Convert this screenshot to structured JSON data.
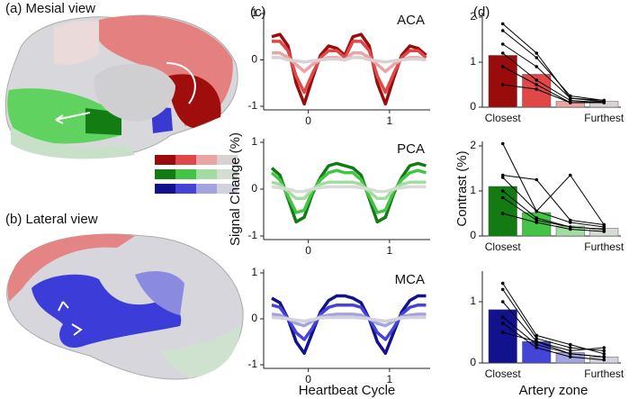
{
  "labels": {
    "a": "(a) Mesial view",
    "b": "(b) Lateral view",
    "c": "(c)",
    "d": "(d)"
  },
  "chart_data": [
    {
      "type": "line",
      "title": "ACA",
      "xlim": [
        -0.55,
        1.5
      ],
      "ylim": [
        -1,
        1
      ],
      "xticks": [
        0,
        1
      ],
      "yticks": [
        -1,
        0,
        1
      ],
      "x": [
        -0.45,
        -0.35,
        -0.25,
        -0.15,
        -0.05,
        0.05,
        0.15,
        0.25,
        0.35,
        0.45,
        0.55,
        0.65,
        0.75,
        0.85,
        0.95,
        1.05,
        1.15,
        1.25,
        1.35,
        1.45
      ],
      "series": [
        {
          "color": "#9a0c0c",
          "values": [
            0.5,
            0.55,
            0.3,
            -0.5,
            -0.95,
            -0.4,
            0.1,
            0.3,
            0.25,
            0.1,
            0.5,
            0.55,
            0.3,
            -0.5,
            -0.95,
            -0.4,
            0.1,
            0.3,
            0.25,
            0.1
          ]
        },
        {
          "color": "#e04848",
          "values": [
            0.4,
            0.4,
            0.2,
            -0.35,
            -0.7,
            -0.3,
            0.05,
            0.2,
            0.2,
            0.05,
            0.4,
            0.4,
            0.2,
            -0.35,
            -0.7,
            -0.3,
            0.05,
            0.2,
            0.2,
            0.05
          ]
        },
        {
          "color": "#eba3a3",
          "values": [
            0.15,
            0.15,
            0.05,
            -0.1,
            -0.25,
            -0.1,
            0.0,
            0.05,
            0.05,
            0.0,
            0.15,
            0.15,
            0.05,
            -0.1,
            -0.25,
            -0.1,
            0.0,
            0.05,
            0.05,
            0.0
          ]
        },
        {
          "color": "#d9d2d2",
          "values": [
            0.05,
            0.05,
            0.0,
            -0.02,
            -0.05,
            -0.02,
            0.0,
            0.02,
            0.02,
            0.0,
            0.05,
            0.05,
            0.0,
            -0.02,
            -0.05,
            -0.02,
            0.0,
            0.02,
            0.02,
            0.0
          ]
        }
      ]
    },
    {
      "type": "line",
      "title": "PCA",
      "ylabel": "Signal Change (%)",
      "xlim": [
        -0.55,
        1.5
      ],
      "ylim": [
        -1,
        1
      ],
      "xticks": [
        0,
        1
      ],
      "yticks": [
        -1,
        0,
        1
      ],
      "x": [
        -0.45,
        -0.35,
        -0.25,
        -0.15,
        -0.05,
        0.05,
        0.15,
        0.25,
        0.35,
        0.45,
        0.55,
        0.65,
        0.75,
        0.85,
        0.95,
        1.05,
        1.15,
        1.25,
        1.35,
        1.45
      ],
      "series": [
        {
          "color": "#127c12",
          "values": [
            0.45,
            0.3,
            -0.2,
            -0.7,
            -0.6,
            -0.1,
            0.25,
            0.5,
            0.55,
            0.5,
            0.45,
            0.3,
            -0.2,
            -0.7,
            -0.6,
            -0.1,
            0.25,
            0.5,
            0.55,
            0.5
          ]
        },
        {
          "color": "#44c444",
          "values": [
            0.35,
            0.2,
            -0.15,
            -0.5,
            -0.45,
            -0.05,
            0.2,
            0.35,
            0.4,
            0.35,
            0.35,
            0.2,
            -0.15,
            -0.5,
            -0.45,
            -0.05,
            0.2,
            0.35,
            0.4,
            0.35
          ]
        },
        {
          "color": "#a3dca3",
          "values": [
            0.15,
            0.1,
            -0.05,
            -0.2,
            -0.2,
            0.0,
            0.1,
            0.15,
            0.15,
            0.15,
            0.15,
            0.1,
            -0.05,
            -0.2,
            -0.2,
            0.0,
            0.1,
            0.15,
            0.15,
            0.15
          ]
        },
        {
          "color": "#d4dcd4",
          "values": [
            0.05,
            0.03,
            0.0,
            -0.05,
            -0.05,
            0.0,
            0.03,
            0.05,
            0.05,
            0.05,
            0.05,
            0.03,
            0.0,
            -0.05,
            -0.05,
            0.0,
            0.03,
            0.05,
            0.05,
            0.05
          ]
        }
      ]
    },
    {
      "type": "line",
      "title": "MCA",
      "xlabel": "Heartbeat Cycle",
      "xlim": [
        -0.55,
        1.5
      ],
      "ylim": [
        -1,
        1
      ],
      "xticks": [
        0,
        1
      ],
      "yticks": [
        -1,
        0,
        1
      ],
      "x": [
        -0.45,
        -0.35,
        -0.25,
        -0.15,
        -0.05,
        0.05,
        0.15,
        0.25,
        0.35,
        0.45,
        0.55,
        0.65,
        0.75,
        0.85,
        0.95,
        1.05,
        1.15,
        1.25,
        1.35,
        1.45
      ],
      "series": [
        {
          "color": "#12128e",
          "values": [
            0.45,
            0.35,
            0.0,
            -0.5,
            -0.75,
            -0.3,
            0.15,
            0.4,
            0.5,
            0.5,
            0.45,
            0.35,
            0.0,
            -0.5,
            -0.75,
            -0.3,
            0.15,
            0.4,
            0.5,
            0.5
          ]
        },
        {
          "color": "#4444d8",
          "values": [
            0.3,
            0.25,
            0.0,
            -0.3,
            -0.45,
            -0.2,
            0.1,
            0.25,
            0.3,
            0.3,
            0.3,
            0.25,
            0.0,
            -0.3,
            -0.45,
            -0.2,
            0.1,
            0.25,
            0.3,
            0.3
          ]
        },
        {
          "color": "#a3a3e2",
          "values": [
            0.1,
            0.08,
            0.0,
            -0.1,
            -0.15,
            -0.05,
            0.05,
            0.08,
            0.1,
            0.1,
            0.1,
            0.08,
            0.0,
            -0.1,
            -0.15,
            -0.05,
            0.05,
            0.08,
            0.1,
            0.1
          ]
        },
        {
          "color": "#d2d2dc",
          "values": [
            0.03,
            0.02,
            0.0,
            -0.03,
            -0.05,
            -0.02,
            0.02,
            0.03,
            0.03,
            0.03,
            0.03,
            0.02,
            0.0,
            -0.03,
            -0.05,
            -0.02,
            0.02,
            0.03,
            0.03,
            0.03
          ]
        }
      ]
    },
    {
      "type": "bar",
      "categories": [
        "Closest",
        null,
        null,
        "Furthest"
      ],
      "ylim": [
        0,
        2.1
      ],
      "yticks": [
        0,
        1,
        2
      ],
      "values": [
        1.15,
        0.73,
        0.13,
        0.13
      ],
      "colors": [
        "#9a0c0c",
        "#e04848",
        "#eba3a3",
        "#d9d2d2"
      ],
      "subjects": [
        [
          1.85,
          1.2,
          0.2,
          0.12
        ],
        [
          1.7,
          1.1,
          0.25,
          0.15
        ],
        [
          1.4,
          0.9,
          0.2,
          0.15
        ],
        [
          1.2,
          0.6,
          0.15,
          0.1
        ],
        [
          0.9,
          0.5,
          0.1,
          0.12
        ],
        [
          0.5,
          0.4,
          0.1,
          0.1
        ]
      ]
    },
    {
      "type": "bar",
      "ylabel": "Contrast (%)",
      "categories": [
        "Closest",
        null,
        null,
        "Furthest"
      ],
      "ylim": [
        0,
        2.1
      ],
      "yticks": [
        0,
        1,
        2
      ],
      "values": [
        1.1,
        0.52,
        0.22,
        0.17
      ],
      "colors": [
        "#127c12",
        "#44c444",
        "#a3dca3",
        "#d4dcd4"
      ],
      "subjects": [
        [
          2.05,
          0.55,
          0.3,
          0.2
        ],
        [
          1.35,
          1.25,
          0.35,
          0.25
        ],
        [
          1.3,
          0.55,
          1.35,
          0.25
        ],
        [
          1.0,
          0.4,
          0.2,
          0.15
        ],
        [
          0.85,
          0.35,
          0.2,
          0.15
        ],
        [
          0.5,
          0.3,
          0.15,
          0.1
        ]
      ]
    },
    {
      "type": "bar",
      "xlabel": "Artery zone",
      "categories": [
        "Closest",
        null,
        null,
        "Furthest"
      ],
      "ylim": [
        0,
        1.5
      ],
      "yticks": [
        0,
        1
      ],
      "values": [
        0.87,
        0.35,
        0.17,
        0.1
      ],
      "colors": [
        "#12128e",
        "#4444d8",
        "#a3a3e2",
        "#d2d2dc"
      ],
      "subjects": [
        [
          1.3,
          0.45,
          0.3,
          0.15
        ],
        [
          1.2,
          0.4,
          0.25,
          0.2
        ],
        [
          1.0,
          0.35,
          0.2,
          0.25
        ],
        [
          0.75,
          0.3,
          0.15,
          0.1
        ],
        [
          0.65,
          0.25,
          0.1,
          0.05
        ],
        [
          0.5,
          0.35,
          0.15,
          0.1
        ]
      ]
    }
  ]
}
